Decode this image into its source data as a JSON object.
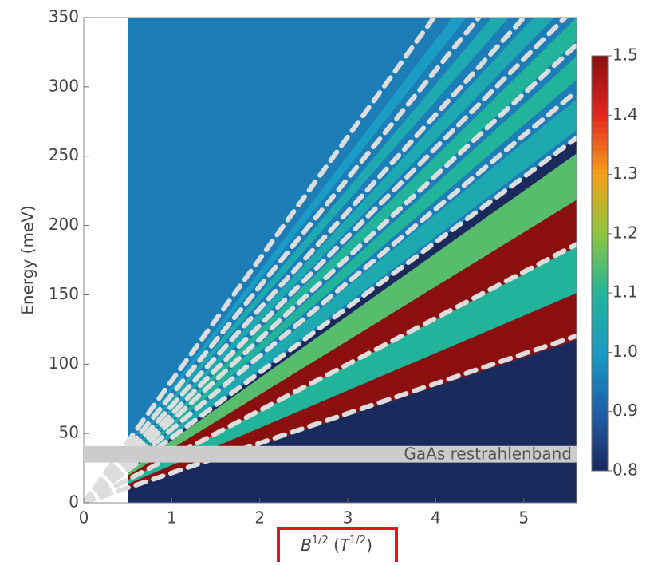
{
  "chart_data": {
    "type": "heatmap",
    "ylabel": "Energy (meV)",
    "x_label_parts": [
      "B",
      "1/2",
      " (",
      "T",
      "1/2",
      ")"
    ],
    "xlim": [
      0,
      5.6
    ],
    "xticks": [
      0,
      1,
      2,
      3,
      4,
      5
    ],
    "ylim": [
      0,
      350
    ],
    "yticks": [
      0,
      50,
      100,
      150,
      200,
      250,
      300,
      350
    ],
    "data_xlim": [
      0.5,
      5.6
    ],
    "background_value": 0.95,
    "regions": [
      {
        "slope_range": [
          0,
          47
        ],
        "value": 0.8
      }
    ],
    "ridges": [
      {
        "slope": 27,
        "width": 12,
        "value": 1.1
      },
      {
        "slope": 24,
        "width": 6,
        "value": 1.5
      },
      {
        "slope": 39,
        "width": 12,
        "value": 1.15
      },
      {
        "slope": 36,
        "width": 6,
        "value": 1.5
      },
      {
        "slope": 50,
        "width": 4,
        "value": 1.05
      },
      {
        "slope": 56,
        "width": 3,
        "value": 1.1
      },
      {
        "slope": 61,
        "width": 3,
        "value": 1.1
      },
      {
        "slope": 67,
        "width": 3,
        "value": 1.05
      },
      {
        "slope": 74,
        "width": 3,
        "value": 1.05
      },
      {
        "slope": 82,
        "width": 3,
        "value": 1.0
      }
    ],
    "fit_lines": {
      "color": "#dddddd",
      "slopes": [
        21.5,
        33.3,
        47,
        53,
        59,
        64,
        70,
        78,
        88
      ]
    },
    "annotation": {
      "text": "GaAs restrahlenband",
      "ylim": [
        29,
        41
      ],
      "color": "#cccccc"
    },
    "colorbar": {
      "clim": [
        0.8,
        1.5
      ],
      "ticks": [
        1.5,
        1.4,
        1.3,
        1.2,
        1.1,
        {
          "value": 1,
          "label": "1.0"
        },
        0.9,
        0.8
      ],
      "colormap": [
        {
          "value": 0.8,
          "color": "#1b2a5c"
        },
        {
          "value": 0.9,
          "color": "#1f5fa8"
        },
        {
          "value": 1,
          "color": "#1a9cc4"
        },
        {
          "value": 1.1,
          "color": "#22b49a"
        },
        {
          "value": 1.2,
          "color": "#8cc63f"
        },
        {
          "value": 1.3,
          "color": "#f5a21b"
        },
        {
          "value": 1.4,
          "color": "#e3261f"
        },
        {
          "value": 1.5,
          "color": "#8b0f0f"
        }
      ]
    }
  }
}
